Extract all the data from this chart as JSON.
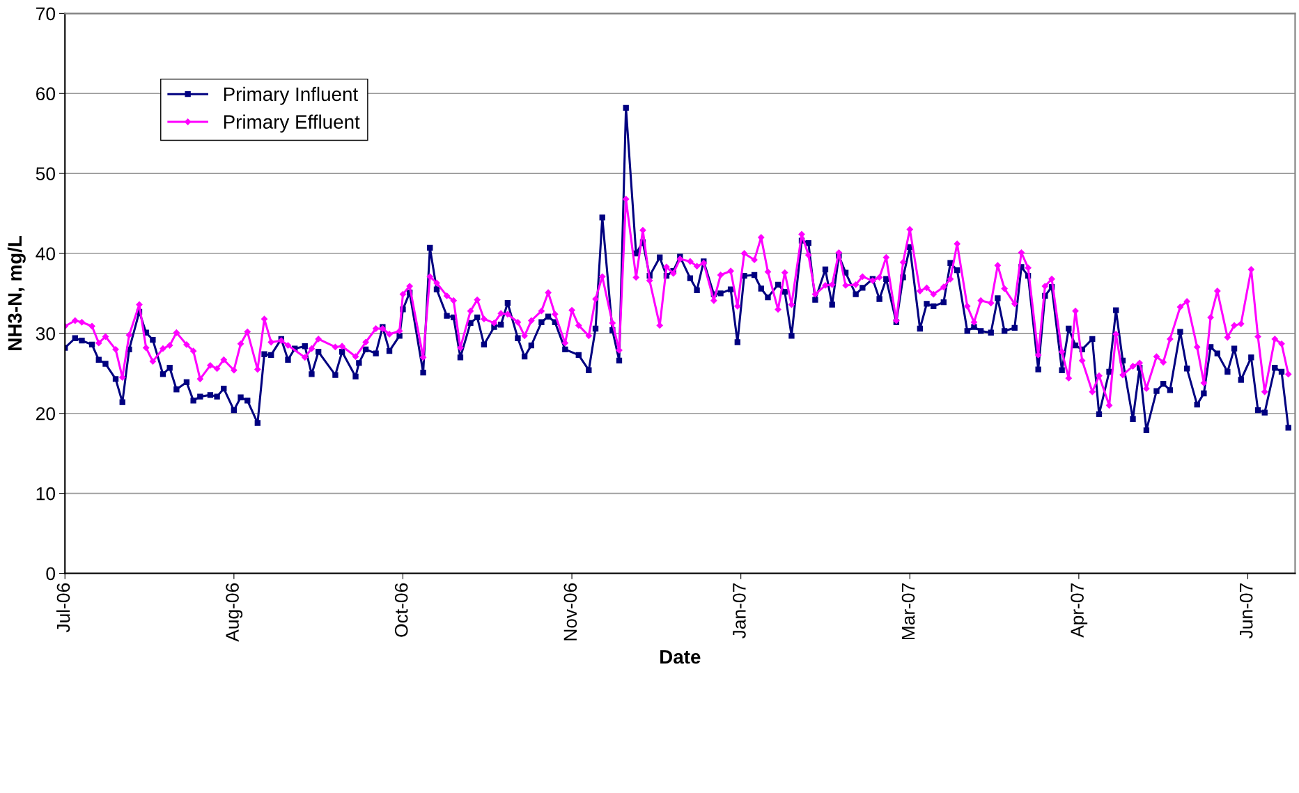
{
  "chart_data": {
    "type": "line",
    "xlabel": "Date",
    "ylabel": "NH3-N, mg/L",
    "xlim": [
      "2006-07-01",
      "2007-06-30"
    ],
    "xticks": [
      {
        "value": "2006-07-01",
        "label": "Jul-06"
      },
      {
        "value": "2006-08-20",
        "label": "Aug-06"
      },
      {
        "value": "2006-10-09",
        "label": "Oct-06"
      },
      {
        "value": "2006-11-28",
        "label": "Nov-06"
      },
      {
        "value": "2007-01-17",
        "label": "Jan-07"
      },
      {
        "value": "2007-03-08",
        "label": "Mar-07"
      },
      {
        "value": "2007-04-27",
        "label": "Apr-07"
      },
      {
        "value": "2007-06-16",
        "label": "Jun-07"
      }
    ],
    "ylim": [
      0,
      70
    ],
    "yticks": [
      0,
      10,
      20,
      30,
      40,
      50,
      60,
      70
    ],
    "grid": "y",
    "legend": "top left",
    "line_style": "solid",
    "series": [
      {
        "name": "Primary Influent",
        "color": "#000080",
        "marker": "square",
        "x": [
          "2006-07-01",
          "2006-07-04",
          "2006-07-06",
          "2006-07-09",
          "2006-07-11",
          "2006-07-13",
          "2006-07-16",
          "2006-07-18",
          "2006-07-20",
          "2006-07-23",
          "2006-07-25",
          "2006-07-27",
          "2006-07-30",
          "2006-08-01",
          "2006-08-03",
          "2006-08-06",
          "2006-08-08",
          "2006-08-10",
          "2006-08-13",
          "2006-08-15",
          "2006-08-17",
          "2006-08-20",
          "2006-08-22",
          "2006-08-24",
          "2006-08-27",
          "2006-08-29",
          "2006-08-31",
          "2006-09-03",
          "2006-09-05",
          "2006-09-07",
          "2006-09-10",
          "2006-09-12",
          "2006-09-14",
          "2006-09-19",
          "2006-09-21",
          "2006-09-25",
          "2006-09-26",
          "2006-09-28",
          "2006-10-01",
          "2006-10-03",
          "2006-10-05",
          "2006-10-08",
          "2006-10-09",
          "2006-10-11",
          "2006-10-15",
          "2006-10-17",
          "2006-10-19",
          "2006-10-22",
          "2006-10-24",
          "2006-10-26",
          "2006-10-29",
          "2006-10-31",
          "2006-11-02",
          "2006-11-05",
          "2006-11-07",
          "2006-11-09",
          "2006-11-12",
          "2006-11-14",
          "2006-11-16",
          "2006-11-19",
          "2006-11-21",
          "2006-11-23",
          "2006-11-26",
          "2006-11-30",
          "2006-12-03",
          "2006-12-05",
          "2006-12-07",
          "2006-12-10",
          "2006-12-12",
          "2006-12-14",
          "2006-12-17",
          "2006-12-19",
          "2006-12-21",
          "2006-12-24",
          "2006-12-26",
          "2006-12-28",
          "2006-12-30",
          "2007-01-02",
          "2007-01-04",
          "2007-01-06",
          "2007-01-09",
          "2007-01-11",
          "2007-01-14",
          "2007-01-16",
          "2007-01-18",
          "2007-01-21",
          "2007-01-23",
          "2007-01-25",
          "2007-01-28",
          "2007-01-30",
          "2007-02-01",
          "2007-02-04",
          "2007-02-06",
          "2007-02-08",
          "2007-02-11",
          "2007-02-13",
          "2007-02-15",
          "2007-02-17",
          "2007-02-20",
          "2007-02-22",
          "2007-02-25",
          "2007-02-27",
          "2007-03-01",
          "2007-03-04",
          "2007-03-06",
          "2007-03-08",
          "2007-03-11",
          "2007-03-13",
          "2007-03-15",
          "2007-03-18",
          "2007-03-20",
          "2007-03-22",
          "2007-03-25",
          "2007-03-27",
          "2007-03-29",
          "2007-04-01",
          "2007-04-03",
          "2007-04-05",
          "2007-04-08",
          "2007-04-10",
          "2007-04-12",
          "2007-04-15",
          "2007-04-17",
          "2007-04-19",
          "2007-04-22",
          "2007-04-24",
          "2007-04-26",
          "2007-04-28",
          "2007-05-01",
          "2007-05-03",
          "2007-05-06",
          "2007-05-08",
          "2007-05-10",
          "2007-05-13",
          "2007-05-15",
          "2007-05-17",
          "2007-05-20",
          "2007-05-22",
          "2007-05-24",
          "2007-05-27",
          "2007-05-29",
          "2007-06-01",
          "2007-06-03",
          "2007-06-05",
          "2007-06-07",
          "2007-06-10",
          "2007-06-12",
          "2007-06-14",
          "2007-06-17",
          "2007-06-19",
          "2007-06-21",
          "2007-06-24",
          "2007-06-26",
          "2007-06-28"
        ],
        "values": [
          28.2,
          29.4,
          29.1,
          28.6,
          26.7,
          26.2,
          24.3,
          21.4,
          28,
          32.7,
          30.1,
          29.2,
          24.9,
          25.7,
          23,
          23.9,
          21.6,
          22.1,
          22.3,
          22.1,
          23.1,
          20.4,
          22,
          21.6,
          18.8,
          27.4,
          27.3,
          29.3,
          26.7,
          28.1,
          28.4,
          24.9,
          27.7,
          24.8,
          27.7,
          24.6,
          26.3,
          28,
          27.5,
          30.8,
          27.8,
          29.7,
          33,
          35.1,
          25.1,
          40.7,
          35.5,
          32.2,
          32,
          27,
          31.3,
          32,
          28.6,
          30.8,
          31.1,
          33.8,
          29.4,
          27.1,
          28.5,
          31.4,
          32.1,
          31.4,
          28,
          27.3,
          25.4,
          30.6,
          44.5,
          30.4,
          26.6,
          58.2,
          40,
          41.4,
          37.2,
          39.5,
          37.2,
          37.8,
          39.6,
          36.9,
          35.4,
          39,
          34.9,
          35,
          35.5,
          28.9,
          37.2,
          37.3,
          35.6,
          34.5,
          36.1,
          35.2,
          29.7,
          41.6,
          41.3,
          34.2,
          38,
          33.6,
          39.7,
          37.6,
          34.9,
          35.7,
          36.8,
          34.3,
          36.8,
          31.4,
          37,
          40.8,
          30.6,
          33.7,
          33.4,
          33.9,
          38.8,
          37.9,
          30.3,
          30.8,
          30.3,
          30.1,
          34.4,
          30.3,
          30.7,
          38.3,
          37.2,
          25.5,
          34.7,
          35.8,
          25.4,
          30.6,
          28.5,
          28,
          29.3,
          19.9,
          25.2,
          32.9,
          26.6,
          19.3,
          25.7,
          17.9,
          22.8,
          23.7,
          22.9,
          30.2,
          25.6,
          21.1,
          22.5,
          28.3,
          27.5,
          25.2,
          28.1,
          24.2,
          27,
          20.4,
          20.1,
          25.7,
          25.2,
          18.2
        ]
      },
      {
        "name": "Primary Effluent",
        "color": "#ff00ff",
        "marker": "diamond",
        "x": [
          "2006-07-01",
          "2006-07-04",
          "2006-07-06",
          "2006-07-09",
          "2006-07-11",
          "2006-07-13",
          "2006-07-16",
          "2006-07-18",
          "2006-07-20",
          "2006-07-23",
          "2006-07-25",
          "2006-07-27",
          "2006-07-30",
          "2006-08-01",
          "2006-08-03",
          "2006-08-06",
          "2006-08-08",
          "2006-08-10",
          "2006-08-13",
          "2006-08-15",
          "2006-08-17",
          "2006-08-20",
          "2006-08-22",
          "2006-08-24",
          "2006-08-27",
          "2006-08-29",
          "2006-08-31",
          "2006-09-03",
          "2006-09-05",
          "2006-09-10",
          "2006-09-12",
          "2006-09-14",
          "2006-09-19",
          "2006-09-21",
          "2006-09-25",
          "2006-09-28",
          "2006-10-01",
          "2006-10-03",
          "2006-10-05",
          "2006-10-08",
          "2006-10-09",
          "2006-10-11",
          "2006-10-15",
          "2006-10-17",
          "2006-10-19",
          "2006-10-22",
          "2006-10-24",
          "2006-10-26",
          "2006-10-29",
          "2006-10-31",
          "2006-11-02",
          "2006-11-05",
          "2006-11-07",
          "2006-11-09",
          "2006-11-12",
          "2006-11-14",
          "2006-11-16",
          "2006-11-19",
          "2006-11-21",
          "2006-11-23",
          "2006-11-26",
          "2006-11-28",
          "2006-11-30",
          "2006-12-03",
          "2006-12-05",
          "2006-12-07",
          "2006-12-10",
          "2006-12-12",
          "2006-12-14",
          "2006-12-17",
          "2006-12-19",
          "2006-12-21",
          "2006-12-24",
          "2006-12-26",
          "2006-12-28",
          "2006-12-30",
          "2007-01-02",
          "2007-01-04",
          "2007-01-06",
          "2007-01-09",
          "2007-01-11",
          "2007-01-14",
          "2007-01-16",
          "2007-01-18",
          "2007-01-21",
          "2007-01-23",
          "2007-01-25",
          "2007-01-28",
          "2007-01-30",
          "2007-02-01",
          "2007-02-04",
          "2007-02-06",
          "2007-02-08",
          "2007-02-11",
          "2007-02-13",
          "2007-02-15",
          "2007-02-17",
          "2007-02-20",
          "2007-02-22",
          "2007-02-25",
          "2007-02-27",
          "2007-03-01",
          "2007-03-04",
          "2007-03-06",
          "2007-03-08",
          "2007-03-11",
          "2007-03-13",
          "2007-03-15",
          "2007-03-18",
          "2007-03-20",
          "2007-03-22",
          "2007-03-25",
          "2007-03-27",
          "2007-03-29",
          "2007-04-01",
          "2007-04-03",
          "2007-04-05",
          "2007-04-08",
          "2007-04-10",
          "2007-04-12",
          "2007-04-15",
          "2007-04-17",
          "2007-04-19",
          "2007-04-22",
          "2007-04-24",
          "2007-04-26",
          "2007-04-28",
          "2007-05-01",
          "2007-05-03",
          "2007-05-06",
          "2007-05-08",
          "2007-05-10",
          "2007-05-13",
          "2007-05-15",
          "2007-05-17",
          "2007-05-20",
          "2007-05-22",
          "2007-05-24",
          "2007-05-27",
          "2007-05-29",
          "2007-06-01",
          "2007-06-03",
          "2007-06-05",
          "2007-06-07",
          "2007-06-10",
          "2007-06-12",
          "2007-06-14",
          "2007-06-17",
          "2007-06-19",
          "2007-06-21",
          "2007-06-24",
          "2007-06-26",
          "2007-06-28"
        ],
        "values": [
          30.9,
          31.6,
          31.4,
          30.9,
          28.8,
          29.6,
          28,
          24.5,
          29.8,
          33.6,
          28.2,
          26.5,
          28.1,
          28.5,
          30.1,
          28.6,
          27.8,
          24.3,
          26,
          25.6,
          26.7,
          25.4,
          28.7,
          30.2,
          25.5,
          31.8,
          28.9,
          29.1,
          28.5,
          27,
          28.1,
          29.3,
          28.3,
          28.4,
          27.1,
          28.9,
          30.6,
          30.6,
          29.9,
          30.3,
          34.9,
          35.9,
          27,
          37.1,
          36.3,
          34.7,
          34.1,
          28.2,
          32.8,
          34.2,
          31.8,
          31.3,
          32.5,
          32.4,
          31.4,
          29.7,
          31.6,
          32.8,
          35.1,
          32.4,
          28.8,
          32.9,
          31,
          29.7,
          34.3,
          37.1,
          31.3,
          27.9,
          46.8,
          37,
          42.9,
          36.6,
          31,
          38.3,
          37.5,
          39.3,
          39,
          38.4,
          38.8,
          34.1,
          37.3,
          37.8,
          33.4,
          40,
          39.2,
          42,
          37.7,
          33,
          37.6,
          33.6,
          42.4,
          39.8,
          34.9,
          36,
          36.1,
          40.1,
          36,
          36.1,
          37.1,
          36.6,
          37,
          39.5,
          31.6,
          38.9,
          43,
          35.3,
          35.7,
          34.9,
          35.8,
          36.8,
          41.2,
          33.4,
          31.4,
          34.1,
          33.8,
          38.5,
          35.6,
          33.7,
          40.1,
          38.2,
          27.3,
          35.9,
          36.8,
          27.7,
          24.4,
          32.8,
          26.6,
          22.7,
          24.7,
          21,
          29.9,
          24.8,
          25.9,
          26.3,
          23.1,
          27.1,
          26.4,
          29.3,
          33.3,
          34,
          28.3,
          23.8,
          32,
          35.3,
          29.5,
          31,
          31.2,
          38,
          29.6,
          22.7,
          29.3,
          28.7,
          24.9
        ]
      }
    ]
  }
}
